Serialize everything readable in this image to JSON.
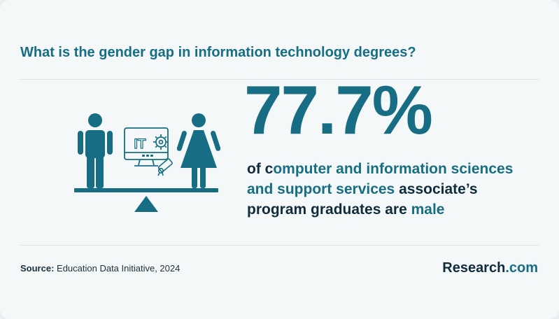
{
  "title": "What is the gender gap in information technology degrees?",
  "stat": "77.7%",
  "description": {
    "part1": "of c",
    "part2": "omputer and information sciences and support services",
    "part3": " associate’s program graduates are ",
    "part4": "male"
  },
  "illustration": {
    "monitor_label": "IT",
    "icons": [
      "male-figure-icon",
      "female-figure-icon",
      "computer-monitor-icon",
      "gear-icon",
      "diploma-icon",
      "balance-scale-icon"
    ]
  },
  "source": {
    "label": "Source:",
    "text": " Education Data Initiative, 2024"
  },
  "logo": {
    "name": "Research",
    "suffix": ".com"
  },
  "colors": {
    "accent": "#176e84",
    "dark": "#0f2b3c",
    "background": "#f5f8f9"
  }
}
